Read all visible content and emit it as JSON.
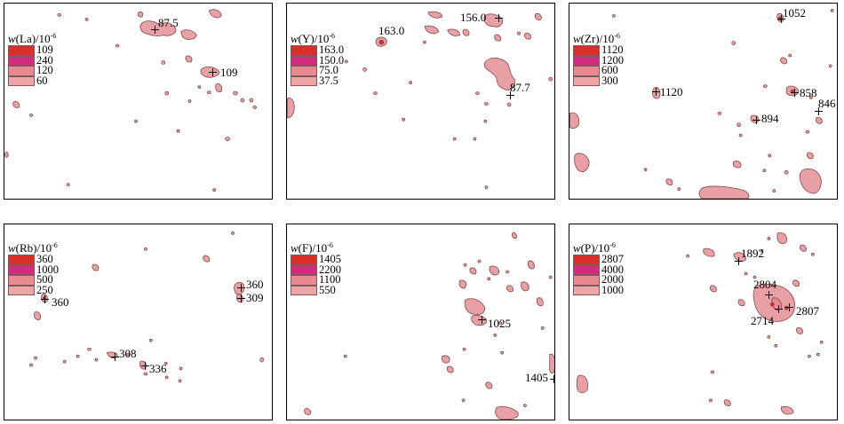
{
  "colors": {
    "class1": "#d92e2a",
    "class2": "#d42a80",
    "class3": "#e88a90",
    "class4": "#eda5a5",
    "blob_fill": "#e9a0a4",
    "blob_stroke": "#7b4b50",
    "marker": "#000000"
  },
  "panels": [
    {
      "element": "La",
      "legend": {
        "w": "w",
        "element_text": "(La)/10",
        "exponent": "-6",
        "values": [
          "109",
          "240",
          "120",
          "60"
        ]
      },
      "labels": [
        "87.5",
        "109"
      ]
    },
    {
      "element": "Y",
      "legend": {
        "w": "w",
        "element_text": "(Y)/10",
        "exponent": "-6",
        "values": [
          "163.0",
          "150.0",
          "75.0",
          "37.5"
        ]
      },
      "labels": [
        "163.0",
        "156.0",
        "87.7"
      ]
    },
    {
      "element": "Zr",
      "legend": {
        "w": "w",
        "element_text": "(Zr)/10",
        "exponent": "-6",
        "values": [
          "1120",
          "1200",
          "600",
          "300"
        ]
      },
      "labels": [
        "1052",
        "1120",
        "858",
        "846",
        "894"
      ]
    },
    {
      "element": "Rb",
      "legend": {
        "w": "w",
        "element_text": "(Rb)/10",
        "exponent": "-6",
        "values": [
          "360",
          "1000",
          "500",
          "250"
        ]
      },
      "labels": [
        "360",
        "360",
        "309",
        "308",
        "336"
      ]
    },
    {
      "element": "F",
      "legend": {
        "w": "w",
        "element_text": "(F)/10",
        "exponent": "-6",
        "values": [
          "1405",
          "2200",
          "1100",
          "550"
        ]
      },
      "labels": [
        "1025",
        "1405"
      ]
    },
    {
      "element": "P",
      "legend": {
        "w": "w",
        "element_text": "(P)/10",
        "exponent": "-6",
        "values": [
          "2807",
          "4000",
          "2000",
          "1000"
        ]
      },
      "labels": [
        "1892",
        "2804",
        "2807",
        "2714"
      ]
    }
  ]
}
